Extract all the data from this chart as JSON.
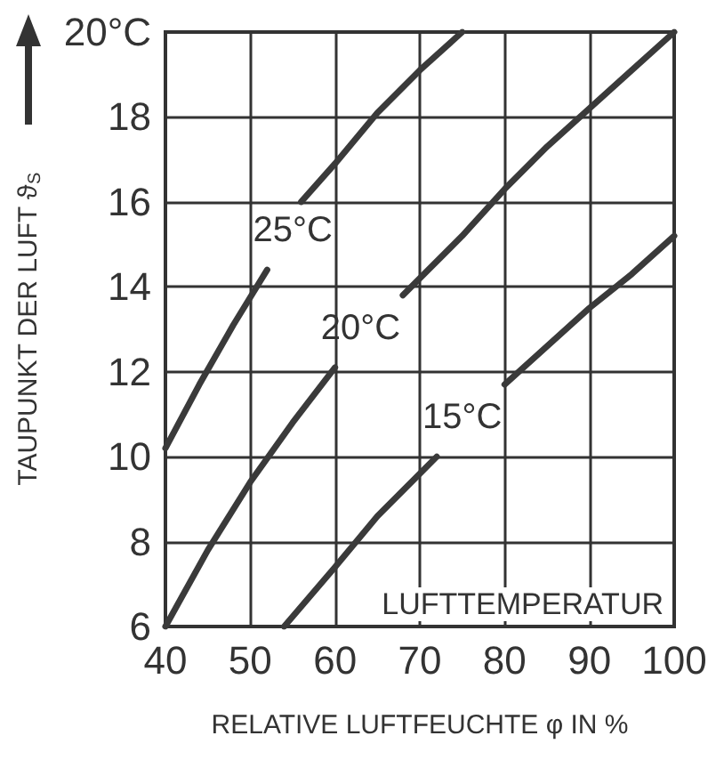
{
  "chart_data": {
    "type": "line",
    "xlabel": "RELATIVE LUFTFEUCHTE φ IN %",
    "ylabel": "TAUPUNKT DER LUFT ϑ$_{S}$",
    "annotations": [
      "LUFTTEMPERATUR"
    ],
    "xlim": [
      40,
      100
    ],
    "xticks": [
      40,
      50,
      60,
      70,
      80,
      90,
      100
    ],
    "ylim": [
      6,
      20
    ],
    "yticks": [
      6,
      8,
      10,
      12,
      14,
      16,
      18,
      {
        "value": 20,
        "label": "20°C"
      }
    ],
    "grid": true,
    "legend": false,
    "marker": "none",
    "line_style": "solid",
    "series": [
      {
        "name": "25°C",
        "color": "#3a3a3a",
        "x": [
          40,
          44,
          48,
          52,
          54,
          56,
          60,
          65,
          70,
          75
        ],
        "values": [
          10.2,
          11.7,
          13.1,
          14.4,
          null,
          16,
          16.9,
          18.1,
          19.1,
          20
        ]
      },
      {
        "name": "20°C",
        "color": "#3a3a3a",
        "x": [
          40,
          45,
          50,
          55,
          60,
          64,
          68,
          75,
          80,
          85,
          90,
          95,
          100
        ],
        "values": [
          6,
          7.8,
          9.4,
          10.8,
          12.1,
          null,
          13.8,
          15.2,
          16.3,
          17.3,
          18.2,
          19.1,
          20
        ]
      },
      {
        "name": "15°C",
        "color": "#3a3a3a",
        "x": [
          54,
          60,
          65,
          70,
          72,
          76,
          80,
          85,
          90,
          95,
          100
        ],
        "values": [
          6,
          7.4,
          8.6,
          9.6,
          10,
          null,
          11.7,
          12.6,
          13.5,
          14.3,
          15.2
        ]
      }
    ]
  }
}
